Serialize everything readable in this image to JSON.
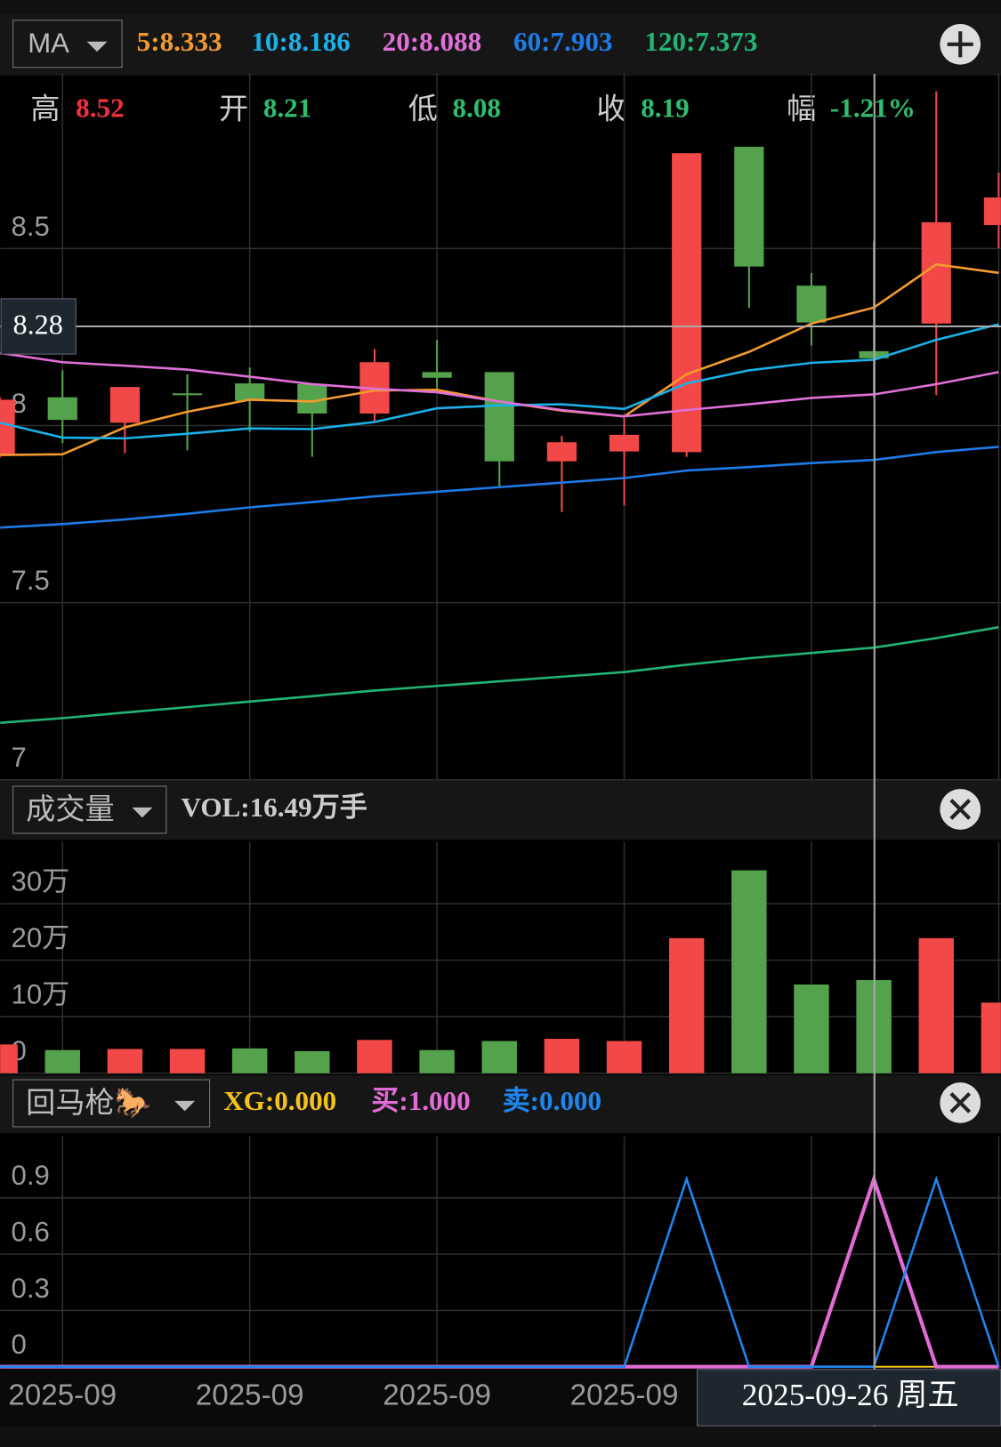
{
  "toolbar": {
    "indicator": "MA"
  },
  "quote": {
    "labels": [
      "高",
      "开",
      "低",
      "收",
      "幅"
    ],
    "change": "-1.21%"
  },
  "volume_bar": {
    "indicator": "成交量",
    "text": "VOL:16.49万手"
  },
  "signal_bar": {
    "indicator": "回马枪🐎"
  },
  "chart_data": [
    {
      "type": "candlestick",
      "categories": [
        null,
        "2025-09",
        null,
        null,
        "2025-09",
        null,
        null,
        "2025-09",
        null,
        null,
        "2025-09",
        null,
        null,
        null,
        null,
        null,
        null
      ],
      "open": [
        7.917,
        8.08,
        8.008,
        8.091,
        8.119,
        8.117,
        8.034,
        8.151,
        8.151,
        7.899,
        7.927,
        7.925,
        8.787,
        8.395,
        8.21,
        8.288,
        8.566
      ],
      "high": [
        8.08,
        8.156,
        8.109,
        8.145,
        8.164,
        8.117,
        8.216,
        8.242,
        8.151,
        7.971,
        8.021,
        8.769,
        8.787,
        8.431,
        8.52,
        8.943,
        8.714
      ],
      "low": [
        7.91,
        7.951,
        7.922,
        7.93,
        7.982,
        7.912,
        8.013,
        8.104,
        7.826,
        7.756,
        7.774,
        7.912,
        8.332,
        8.226,
        8.08,
        8.086,
        8.501
      ],
      "close": [
        8.073,
        8.016,
        8.109,
        8.088,
        8.07,
        8.034,
        8.179,
        8.135,
        7.899,
        7.953,
        7.974,
        8.769,
        8.449,
        8.291,
        8.19,
        8.574,
        8.644
      ],
      "up_color": "#f34848",
      "down_color": "#54a24c",
      "series": [
        {
          "name": "5:8.333",
          "color": "#f39a2e",
          "values": [
            7.917,
            7.919,
            7.995,
            8.039,
            8.073,
            8.068,
            8.099,
            8.101,
            8.068,
            8.042,
            8.026,
            8.145,
            8.208,
            8.288,
            8.333,
            8.455,
            8.431
          ]
        },
        {
          "name": "10:8.186",
          "color": "#1ab0e8",
          "values": [
            8.008,
            7.966,
            7.964,
            7.977,
            7.992,
            7.99,
            8.01,
            8.049,
            8.057,
            8.06,
            8.047,
            8.119,
            8.156,
            8.177,
            8.186,
            8.242,
            8.286
          ]
        },
        {
          "name": "20:8.088",
          "color": "#e070d8",
          "values": [
            8.205,
            8.179,
            8.169,
            8.158,
            8.138,
            8.117,
            8.104,
            8.094,
            8.068,
            8.044,
            8.026,
            8.044,
            8.06,
            8.078,
            8.088,
            8.117,
            8.151
          ]
        },
        {
          "name": "60:7.903",
          "color": "#1e7be8",
          "values": [
            7.712,
            7.722,
            7.735,
            7.751,
            7.769,
            7.784,
            7.8,
            7.813,
            7.826,
            7.839,
            7.852,
            7.873,
            7.883,
            7.894,
            7.903,
            7.925,
            7.94
          ]
        },
        {
          "name": "120:7.373",
          "color": "#22b573",
          "values": [
            7.161,
            7.174,
            7.19,
            7.205,
            7.221,
            7.236,
            7.252,
            7.265,
            7.278,
            7.291,
            7.304,
            7.325,
            7.343,
            7.358,
            7.373,
            7.4,
            7.431
          ]
        }
      ],
      "ylim": [
        7,
        8.98
      ],
      "yticks": [
        7,
        7.5,
        8,
        8.5
      ],
      "grid": true,
      "crosshair": {
        "y": 8.28,
        "label": "2025-09-26 周五"
      }
    },
    {
      "type": "bar",
      "values": [
        5.1,
        4.1,
        4.3,
        4.3,
        4.4,
        3.9,
        5.9,
        4.1,
        5.7,
        6.1,
        5.7,
        23.9,
        35.9,
        15.7,
        16.49,
        23.9,
        12.5
      ],
      "colors": [
        "#f34848",
        "#54a24c",
        "#f34848",
        "#f34848",
        "#54a24c",
        "#54a24c",
        "#f34848",
        "#54a24c",
        "#54a24c",
        "#f34848",
        "#f34848",
        "#f34848",
        "#54a24c",
        "#54a24c",
        "#54a24c",
        "#f34848",
        "#f34848"
      ],
      "ylim": [
        0,
        40
      ],
      "yticks": [
        0,
        {
          "value": 10,
          "label": "10万"
        },
        {
          "value": 20,
          "label": "20万"
        },
        {
          "value": 30,
          "label": "30万"
        }
      ],
      "grid": true
    },
    {
      "type": "line",
      "series": [
        {
          "name": "XG:0.000",
          "color": "#f5c21b",
          "values": [
            0,
            0,
            0,
            0,
            0,
            0,
            0,
            0,
            0,
            0,
            0,
            0,
            0,
            0,
            0,
            0,
            0
          ]
        },
        {
          "name": "买:1.000",
          "color": "#e36bd6",
          "values": [
            0,
            0,
            0,
            0,
            0,
            0,
            0,
            0,
            0,
            0,
            0,
            0,
            0,
            0,
            1,
            0,
            0
          ]
        },
        {
          "name": "卖:0.000",
          "color": "#1f86f0",
          "values": [
            0,
            0,
            0,
            0,
            0,
            0,
            0,
            0,
            0,
            0,
            0,
            1,
            0,
            0,
            0,
            1,
            0
          ]
        }
      ],
      "ylim": [
        0,
        1.2
      ],
      "yticks": [
        0,
        0.3,
        0.6,
        0.9
      ],
      "grid": true
    }
  ]
}
